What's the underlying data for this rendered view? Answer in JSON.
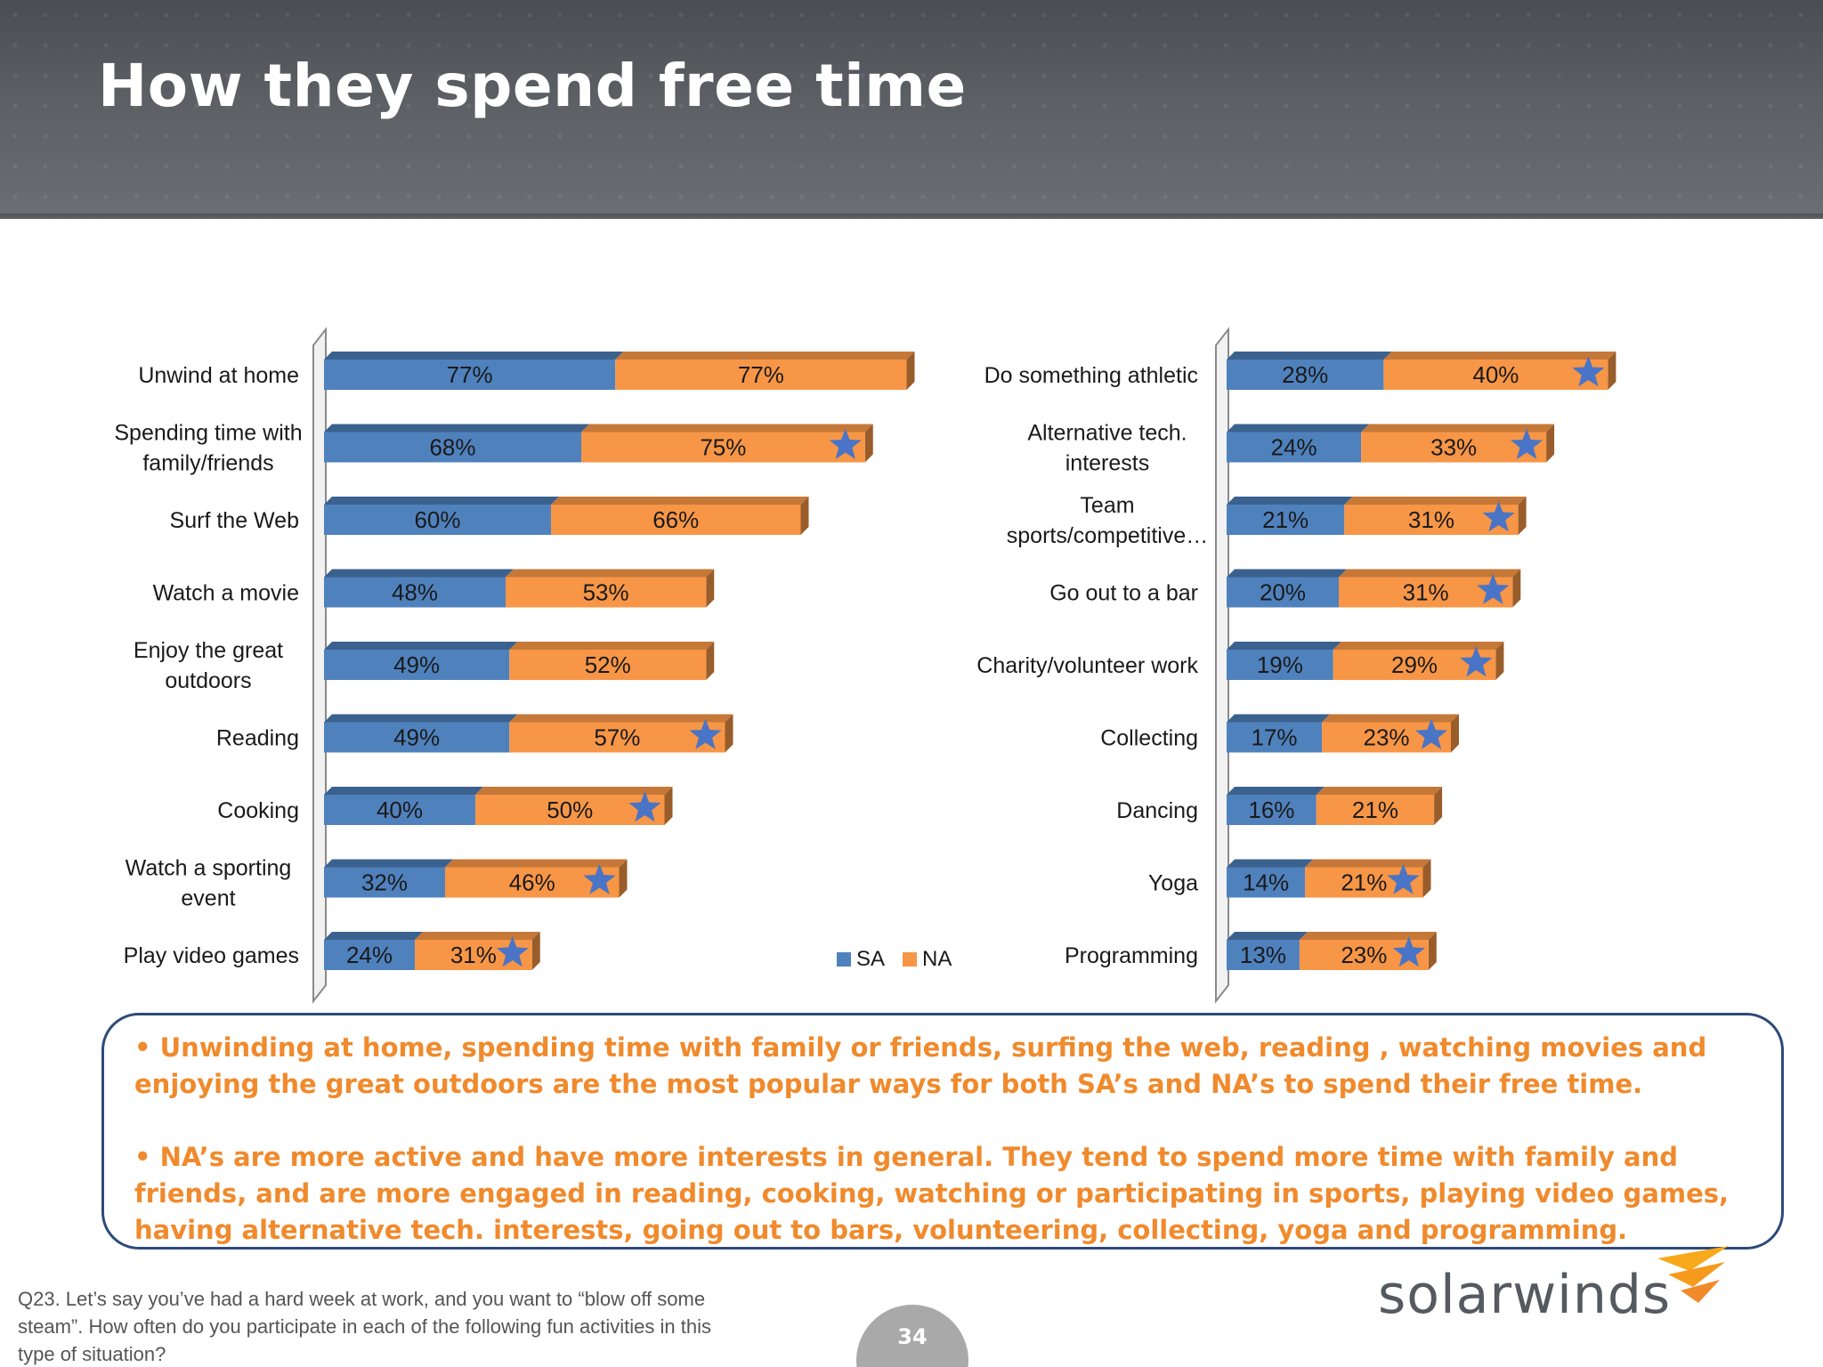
{
  "page": {
    "title": "How they spend free time"
  },
  "chart_data": [
    {
      "type": "bar",
      "orientation": "horizontal",
      "stacked": true,
      "categories": [
        "Unwind at home",
        "Spending time with family/friends",
        "Surf the Web",
        "Watch a movie",
        "Enjoy the great outdoors",
        "Reading",
        "Cooking",
        "Watch a sporting event",
        "Play video games"
      ],
      "series": [
        {
          "name": "SA",
          "values": [
            77,
            68,
            60,
            48,
            49,
            49,
            40,
            32,
            24
          ]
        },
        {
          "name": "NA",
          "values": [
            77,
            75,
            66,
            53,
            52,
            57,
            50,
            46,
            31
          ]
        }
      ],
      "data_labels": [
        [
          "77%",
          "68%",
          "60%",
          "48%",
          "49%",
          "49%",
          "40%",
          "32%",
          "24%"
        ],
        [
          "77%",
          "75%",
          "66%",
          "53%",
          "52%",
          "57%",
          "50%",
          "46%",
          "31%"
        ]
      ],
      "starred": [
        false,
        true,
        false,
        false,
        false,
        true,
        true,
        true,
        true
      ],
      "legend": "bottom-right"
    },
    {
      "type": "bar",
      "orientation": "horizontal",
      "stacked": true,
      "categories": [
        "Do something athletic",
        "Alternative tech. interests",
        "Team sports/competitive…",
        "Go out to a bar",
        "Charity/volunteer work",
        "Collecting",
        "Dancing",
        "Yoga",
        "Programming"
      ],
      "series": [
        {
          "name": "SA",
          "values": [
            28,
            24,
            21,
            20,
            19,
            17,
            16,
            14,
            13
          ]
        },
        {
          "name": "NA",
          "values": [
            40,
            33,
            31,
            31,
            29,
            23,
            21,
            21,
            23
          ]
        }
      ],
      "data_labels": [
        [
          "28%",
          "24%",
          "21%",
          "20%",
          "19%",
          "17%",
          "16%",
          "14%",
          "13%"
        ],
        [
          "40%",
          "33%",
          "31%",
          "31%",
          "29%",
          "23%",
          "21%",
          "21%",
          "23%"
        ]
      ],
      "starred": [
        true,
        true,
        true,
        true,
        true,
        true,
        false,
        true,
        true
      ]
    }
  ],
  "colors": {
    "sa": "#4f81bd",
    "na": "#f79646",
    "star": "#4a74c6",
    "accent": "#f08a2c",
    "frame": "#2e4a7a"
  },
  "legend": {
    "sa": "SA",
    "na": "NA"
  },
  "findings": {
    "bullet1": "•  Unwinding at home, spending time with family or friends, surfing the web, reading , watching movies and enjoying the great outdoors are the most popular ways for both SA’s and NA’s to spend their free time.",
    "bullet2": "•  NA’s are more active and have more interests in general.  They tend to spend more time with family and friends, and are more engaged in reading, cooking, watching or participating in sports, playing video games, having alternative tech. interests, going out to bars, volunteering, collecting, yoga and programming."
  },
  "footnote": "Q23.  Let’s say you’ve had a hard week at work, and you want to “blow off some steam”.  How often do you participate in each of the following fun activities in this type of situation?",
  "page_number": "34",
  "logo": {
    "text": "solarwinds"
  }
}
